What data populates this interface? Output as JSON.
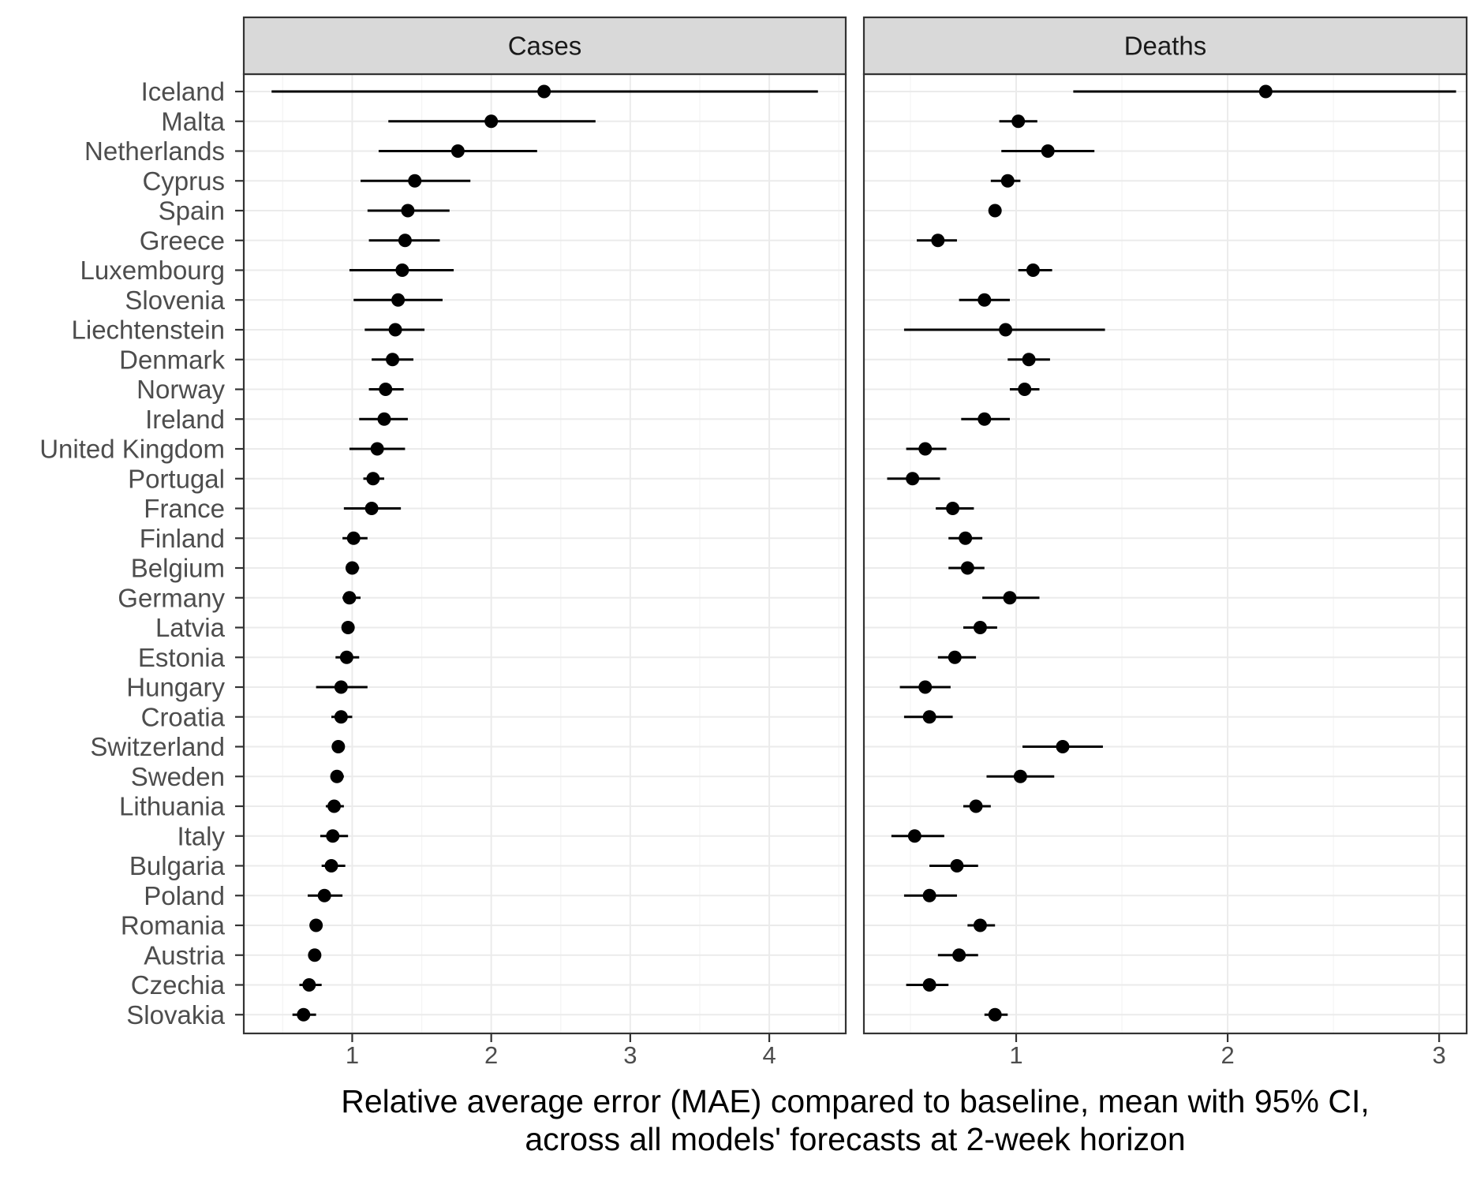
{
  "chart_data": {
    "type": "point-range (dot and whisker), faceted",
    "countries": [
      "Iceland",
      "Malta",
      "Netherlands",
      "Cyprus",
      "Spain",
      "Greece",
      "Luxembourg",
      "Slovenia",
      "Liechtenstein",
      "Denmark",
      "Norway",
      "Ireland",
      "United Kingdom",
      "Portugal",
      "France",
      "Finland",
      "Belgium",
      "Germany",
      "Latvia",
      "Estonia",
      "Hungary",
      "Croatia",
      "Switzerland",
      "Sweden",
      "Lithuania",
      "Italy",
      "Bulgaria",
      "Poland",
      "Romania",
      "Austria",
      "Czechia",
      "Slovakia"
    ],
    "panels": [
      {
        "name": "Cases",
        "xlim": [
          0.22,
          4.55
        ],
        "xticks": [
          1,
          2,
          3,
          4
        ],
        "xtick_labels": [
          "1",
          "2",
          "3",
          "4"
        ],
        "minor_gridlines": [
          0.5,
          1.5,
          2.5,
          3.5,
          4.5
        ],
        "mean": [
          2.38,
          2.0,
          1.76,
          1.45,
          1.4,
          1.38,
          1.36,
          1.33,
          1.31,
          1.29,
          1.24,
          1.23,
          1.18,
          1.15,
          1.14,
          1.01,
          1.0,
          0.98,
          0.97,
          0.96,
          0.92,
          0.92,
          0.9,
          0.89,
          0.87,
          0.86,
          0.85,
          0.8,
          0.74,
          0.73,
          0.69,
          0.65
        ],
        "lower": [
          0.42,
          1.26,
          1.19,
          1.06,
          1.11,
          1.12,
          0.98,
          1.01,
          1.09,
          1.14,
          1.12,
          1.05,
          0.98,
          1.08,
          0.94,
          0.93,
          0.96,
          0.93,
          0.95,
          0.88,
          0.74,
          0.85,
          0.88,
          0.85,
          0.81,
          0.77,
          0.78,
          0.68,
          0.7,
          0.7,
          0.62,
          0.57
        ],
        "upper": [
          4.35,
          2.75,
          2.33,
          1.85,
          1.7,
          1.63,
          1.73,
          1.65,
          1.52,
          1.44,
          1.37,
          1.4,
          1.38,
          1.23,
          1.35,
          1.11,
          1.05,
          1.06,
          1.0,
          1.05,
          1.11,
          1.0,
          0.93,
          0.94,
          0.94,
          0.97,
          0.95,
          0.93,
          0.78,
          0.77,
          0.78,
          0.74
        ]
      },
      {
        "name": "Deaths",
        "xlim": [
          0.28,
          3.13
        ],
        "xticks": [
          1,
          2,
          3
        ],
        "xtick_labels": [
          "1",
          "2",
          "3"
        ],
        "minor_gridlines": [
          0.5,
          1.5,
          2.5
        ],
        "mean": [
          2.18,
          1.01,
          1.15,
          0.96,
          0.9,
          0.63,
          1.08,
          0.85,
          0.95,
          1.06,
          1.04,
          0.85,
          0.57,
          0.51,
          0.7,
          0.76,
          0.77,
          0.97,
          0.83,
          0.71,
          0.57,
          0.59,
          1.22,
          1.02,
          0.81,
          0.52,
          0.72,
          0.59,
          0.83,
          0.73,
          0.59,
          0.9
        ],
        "lower": [
          1.27,
          0.92,
          0.93,
          0.88,
          0.88,
          0.53,
          1.01,
          0.73,
          0.47,
          0.96,
          0.97,
          0.74,
          0.48,
          0.39,
          0.62,
          0.68,
          0.68,
          0.84,
          0.75,
          0.63,
          0.45,
          0.47,
          1.03,
          0.86,
          0.75,
          0.41,
          0.59,
          0.47,
          0.77,
          0.63,
          0.48,
          0.85
        ],
        "upper": [
          3.08,
          1.1,
          1.37,
          1.02,
          0.92,
          0.72,
          1.17,
          0.97,
          1.42,
          1.16,
          1.11,
          0.97,
          0.67,
          0.64,
          0.8,
          0.84,
          0.85,
          1.11,
          0.91,
          0.81,
          0.69,
          0.7,
          1.41,
          1.18,
          0.88,
          0.66,
          0.82,
          0.72,
          0.9,
          0.82,
          0.68,
          0.96
        ]
      }
    ],
    "xlabel": "Relative average error (MAE) compared to baseline, mean with 95% CI,\nacross all models' forecasts at 2-week horizon",
    "xlabel_lines": [
      "Relative average error (MAE) compared to baseline, mean with 95% CI,",
      "across all models' forecasts at 2-week horizon"
    ],
    "ylabel": "",
    "grid": true,
    "legend": "none",
    "colors": {
      "point": "#000000",
      "strip_fill": "#d9d9d9",
      "panel_border": "#333333",
      "grid": "#ebebeb"
    }
  }
}
